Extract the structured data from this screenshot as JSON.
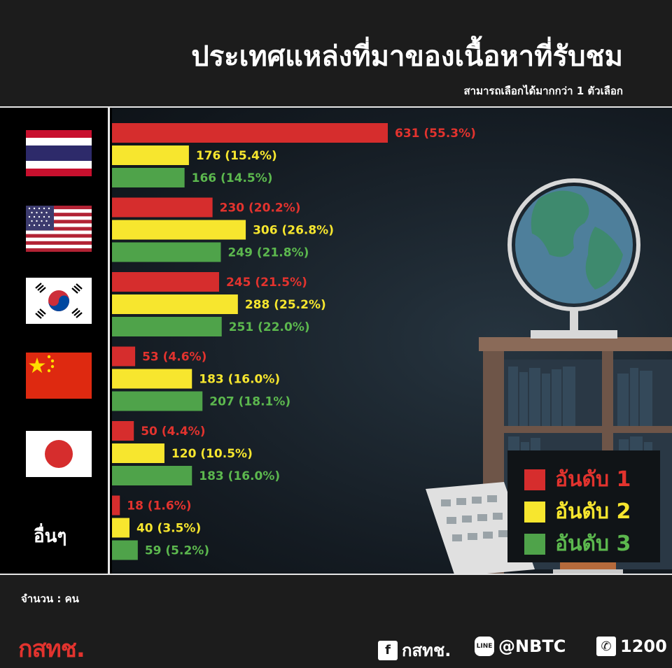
{
  "header": {
    "title": "ประเทศแหล่งที่มาของเนื้อหาที่รับชม",
    "subtitle": "สามารถเลือกได้มากกว่า 1 ตัวเลือก"
  },
  "others_label": "อื่นๆ",
  "footer": {
    "unit_label": "จำนวน : คน",
    "logo": "กสทช.",
    "facebook": "กสทช.",
    "line": "@NBTC",
    "phone": "1200"
  },
  "colors": {
    "rank1": "#d62d2d",
    "rank2": "#f7e62e",
    "rank3": "#4fa34a",
    "rank1_text": "#e2332e",
    "rank2_text": "#f7e62e",
    "rank3_text": "#5cb84e"
  },
  "chart_data": {
    "type": "bar",
    "orientation": "horizontal",
    "categories": [
      "Thailand",
      "United States",
      "South Korea",
      "China",
      "Japan",
      "อื่นๆ"
    ],
    "series": [
      {
        "name": "อันดับ 1",
        "values": [
          631,
          230,
          245,
          53,
          50,
          18
        ],
        "labels": [
          "631 (55.3%)",
          "230 (20.2%)",
          "245 (21.5%)",
          "53 (4.6%)",
          "50 (4.4%)",
          "18 (1.6%)"
        ]
      },
      {
        "name": "อันดับ 2",
        "values": [
          176,
          306,
          288,
          183,
          120,
          40
        ],
        "labels": [
          "176 (15.4%)",
          "306 (26.8%)",
          "288 (25.2%)",
          "183 (16.0%)",
          "120 (10.5%)",
          "40 (3.5%)"
        ]
      },
      {
        "name": "อันดับ 3",
        "values": [
          166,
          249,
          251,
          207,
          183,
          59
        ],
        "labels": [
          "166 (14.5%)",
          "249 (21.8%)",
          "251 (22.0%)",
          "207 (18.1%)",
          "183 (16.0%)",
          "59 (5.2%)"
        ]
      }
    ],
    "legend": {
      "position": "bottom-right",
      "entries": [
        "อันดับ 1",
        "อันดับ 2",
        "อันดับ 3"
      ]
    },
    "grid": false
  }
}
